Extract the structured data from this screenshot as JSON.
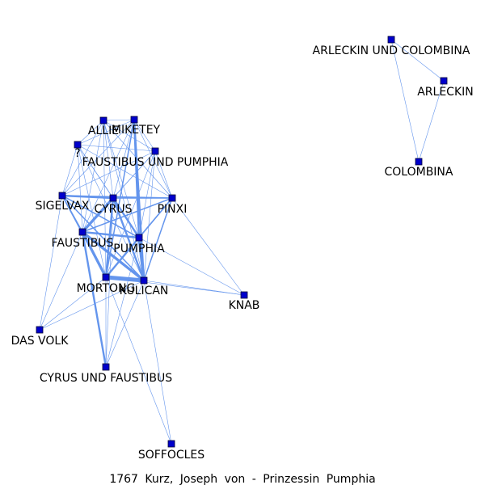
{
  "caption": "1767 Kurz, Joseph von - Prinzessin Pumphia",
  "colors": {
    "edge": "#6495ed",
    "node": "#0000cc",
    "label": "#000000"
  },
  "nodes": [
    {
      "id": "allie",
      "label": "ALLIE"
    },
    {
      "id": "miketey",
      "label": "MIKETEY"
    },
    {
      "id": "q",
      "label": "?"
    },
    {
      "id": "faustibus-und-pumphia",
      "label": "FAUSTIBUS UND PUMPHIA"
    },
    {
      "id": "sigelvax",
      "label": "SIGELVAX"
    },
    {
      "id": "cyrus",
      "label": "CYRUS"
    },
    {
      "id": "pinxi",
      "label": "PINXI"
    },
    {
      "id": "faustibus",
      "label": "FAUSTIBUS"
    },
    {
      "id": "pumphia",
      "label": "PUMPHIA"
    },
    {
      "id": "mortong",
      "label": "MORTONG"
    },
    {
      "id": "kulican",
      "label": "KULICAN"
    },
    {
      "id": "knab",
      "label": "KNAB"
    },
    {
      "id": "das-volk",
      "label": "DAS VOLK"
    },
    {
      "id": "cyrus-und-faustibus",
      "label": "CYRUS UND FAUSTIBUS"
    },
    {
      "id": "soffocles",
      "label": "SOFFOCLES"
    },
    {
      "id": "arleckin-und-colombina",
      "label": "ARLECKIN UND COLOMBINA"
    },
    {
      "id": "arleckin",
      "label": "ARLECKIN"
    },
    {
      "id": "colombina",
      "label": "COLOMBINA"
    }
  ],
  "edges": [
    {
      "source": "allie",
      "target": "miketey",
      "weight": 1
    },
    {
      "source": "allie",
      "target": "q",
      "weight": 1
    },
    {
      "source": "allie",
      "target": "faustibus-und-pumphia",
      "weight": 1
    },
    {
      "source": "allie",
      "target": "sigelvax",
      "weight": 1
    },
    {
      "source": "allie",
      "target": "cyrus",
      "weight": 1
    },
    {
      "source": "allie",
      "target": "pinxi",
      "weight": 1
    },
    {
      "source": "allie",
      "target": "faustibus",
      "weight": 1
    },
    {
      "source": "allie",
      "target": "pumphia",
      "weight": 1
    },
    {
      "source": "allie",
      "target": "mortong",
      "weight": 1
    },
    {
      "source": "allie",
      "target": "kulican",
      "weight": 1
    },
    {
      "source": "miketey",
      "target": "q",
      "weight": 1
    },
    {
      "source": "miketey",
      "target": "faustibus-und-pumphia",
      "weight": 1
    },
    {
      "source": "miketey",
      "target": "sigelvax",
      "weight": 1
    },
    {
      "source": "miketey",
      "target": "cyrus",
      "weight": 1
    },
    {
      "source": "miketey",
      "target": "pinxi",
      "weight": 1
    },
    {
      "source": "miketey",
      "target": "faustibus",
      "weight": 1
    },
    {
      "source": "miketey",
      "target": "pumphia",
      "weight": 3
    },
    {
      "source": "miketey",
      "target": "mortong",
      "weight": 2
    },
    {
      "source": "miketey",
      "target": "kulican",
      "weight": 3
    },
    {
      "source": "q",
      "target": "faustibus-und-pumphia",
      "weight": 1
    },
    {
      "source": "q",
      "target": "sigelvax",
      "weight": 1
    },
    {
      "source": "q",
      "target": "cyrus",
      "weight": 1
    },
    {
      "source": "q",
      "target": "pinxi",
      "weight": 1
    },
    {
      "source": "q",
      "target": "faustibus",
      "weight": 1
    },
    {
      "source": "q",
      "target": "pumphia",
      "weight": 1
    },
    {
      "source": "q",
      "target": "mortong",
      "weight": 1
    },
    {
      "source": "q",
      "target": "kulican",
      "weight": 1
    },
    {
      "source": "faustibus-und-pumphia",
      "target": "sigelvax",
      "weight": 1
    },
    {
      "source": "faustibus-und-pumphia",
      "target": "cyrus",
      "weight": 1
    },
    {
      "source": "faustibus-und-pumphia",
      "target": "pinxi",
      "weight": 1
    },
    {
      "source": "faustibus-und-pumphia",
      "target": "faustibus",
      "weight": 1
    },
    {
      "source": "faustibus-und-pumphia",
      "target": "pumphia",
      "weight": 1
    },
    {
      "source": "faustibus-und-pumphia",
      "target": "mortong",
      "weight": 1
    },
    {
      "source": "faustibus-und-pumphia",
      "target": "kulican",
      "weight": 1
    },
    {
      "source": "sigelvax",
      "target": "cyrus",
      "weight": 3
    },
    {
      "source": "sigelvax",
      "target": "pinxi",
      "weight": 2
    },
    {
      "source": "sigelvax",
      "target": "faustibus",
      "weight": 2
    },
    {
      "source": "sigelvax",
      "target": "pumphia",
      "weight": 2
    },
    {
      "source": "sigelvax",
      "target": "mortong",
      "weight": 2
    },
    {
      "source": "sigelvax",
      "target": "kulican",
      "weight": 2
    },
    {
      "source": "sigelvax",
      "target": "das-volk",
      "weight": 1
    },
    {
      "source": "cyrus",
      "target": "pinxi",
      "weight": 2
    },
    {
      "source": "cyrus",
      "target": "faustibus",
      "weight": 4
    },
    {
      "source": "cyrus",
      "target": "pumphia",
      "weight": 3
    },
    {
      "source": "cyrus",
      "target": "mortong",
      "weight": 3
    },
    {
      "source": "cyrus",
      "target": "kulican",
      "weight": 3
    },
    {
      "source": "cyrus",
      "target": "cyrus-und-faustibus",
      "weight": 1
    },
    {
      "source": "pinxi",
      "target": "faustibus",
      "weight": 2
    },
    {
      "source": "pinxi",
      "target": "pumphia",
      "weight": 2
    },
    {
      "source": "pinxi",
      "target": "mortong",
      "weight": 2
    },
    {
      "source": "pinxi",
      "target": "kulican",
      "weight": 2
    },
    {
      "source": "pinxi",
      "target": "knab",
      "weight": 1
    },
    {
      "source": "faustibus",
      "target": "pumphia",
      "weight": 3
    },
    {
      "source": "faustibus",
      "target": "mortong",
      "weight": 4
    },
    {
      "source": "faustibus",
      "target": "kulican",
      "weight": 4
    },
    {
      "source": "faustibus",
      "target": "cyrus-und-faustibus",
      "weight": 3
    },
    {
      "source": "faustibus",
      "target": "das-volk",
      "weight": 1
    },
    {
      "source": "pumphia",
      "target": "mortong",
      "weight": 3
    },
    {
      "source": "pumphia",
      "target": "kulican",
      "weight": 4
    },
    {
      "source": "pumphia",
      "target": "knab",
      "weight": 1
    },
    {
      "source": "pumphia",
      "target": "cyrus-und-faustibus",
      "weight": 1
    },
    {
      "source": "mortong",
      "target": "kulican",
      "weight": 6
    },
    {
      "source": "mortong",
      "target": "das-volk",
      "weight": 1
    },
    {
      "source": "mortong",
      "target": "cyrus-und-faustibus",
      "weight": 1
    },
    {
      "source": "mortong",
      "target": "knab",
      "weight": 1
    },
    {
      "source": "kulican",
      "target": "knab",
      "weight": 1
    },
    {
      "source": "kulican",
      "target": "das-volk",
      "weight": 1
    },
    {
      "source": "kulican",
      "target": "cyrus-und-faustibus",
      "weight": 1
    },
    {
      "source": "kulican",
      "target": "soffocles",
      "weight": 1
    },
    {
      "source": "mortong",
      "target": "soffocles",
      "weight": 1
    },
    {
      "source": "arleckin-und-colombina",
      "target": "arleckin",
      "weight": 1
    },
    {
      "source": "arleckin-und-colombina",
      "target": "colombina",
      "weight": 1
    },
    {
      "source": "arleckin",
      "target": "colombina",
      "weight": 1
    }
  ]
}
